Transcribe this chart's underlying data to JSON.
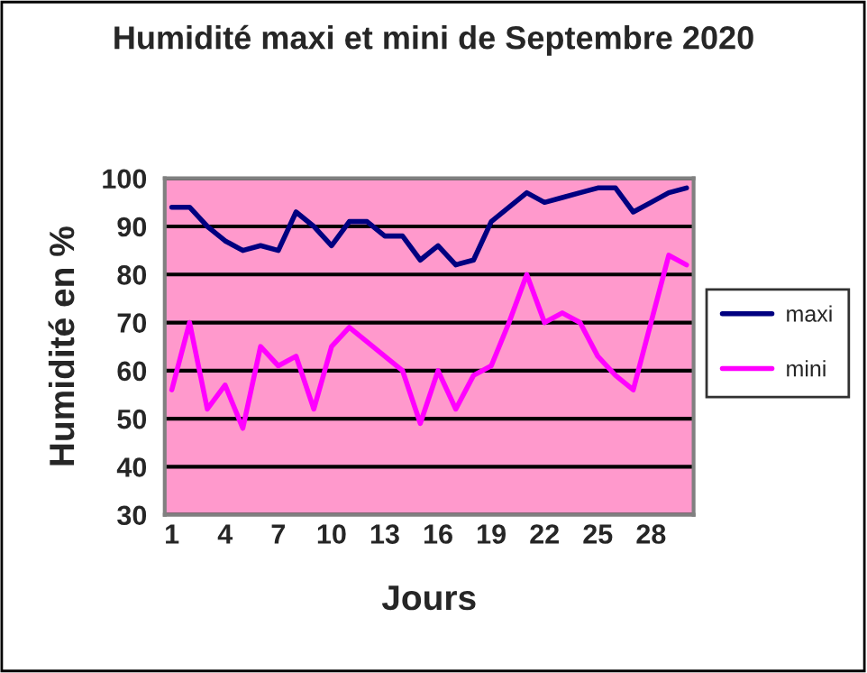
{
  "chart_data": {
    "type": "line",
    "title": "Humidité maxi et mini de Septembre 2020",
    "xlabel": "Jours",
    "ylabel": "Humidité en %",
    "categories": [
      "1",
      null,
      null,
      "4",
      null,
      null,
      "7",
      null,
      null,
      "10",
      null,
      null,
      "13",
      null,
      null,
      "16",
      null,
      null,
      "19",
      null,
      null,
      "22",
      null,
      null,
      "25",
      null,
      null,
      "28",
      null,
      null
    ],
    "series": [
      {
        "name": "maxi",
        "color": "#000080",
        "values": [
          94,
          94,
          90,
          87,
          85,
          86,
          85,
          93,
          90,
          86,
          91,
          91,
          88,
          88,
          83,
          86,
          82,
          83,
          91,
          94,
          97,
          95,
          96,
          97,
          98,
          98,
          93,
          95,
          97,
          98
        ]
      },
      {
        "name": "mini",
        "color": "#ff00ff",
        "values": [
          56,
          70,
          52,
          57,
          48,
          65,
          61,
          63,
          52,
          65,
          69,
          66,
          63,
          60,
          49,
          60,
          52,
          59,
          61,
          70,
          80,
          70,
          72,
          70,
          63,
          59,
          56,
          70,
          84,
          82
        ]
      }
    ],
    "ylim": [
      30,
      100
    ],
    "yticks": [
      30,
      40,
      50,
      60,
      70,
      80,
      90,
      100
    ],
    "grid": "y",
    "legend": "right",
    "marker": "none",
    "line_style": "solid"
  }
}
